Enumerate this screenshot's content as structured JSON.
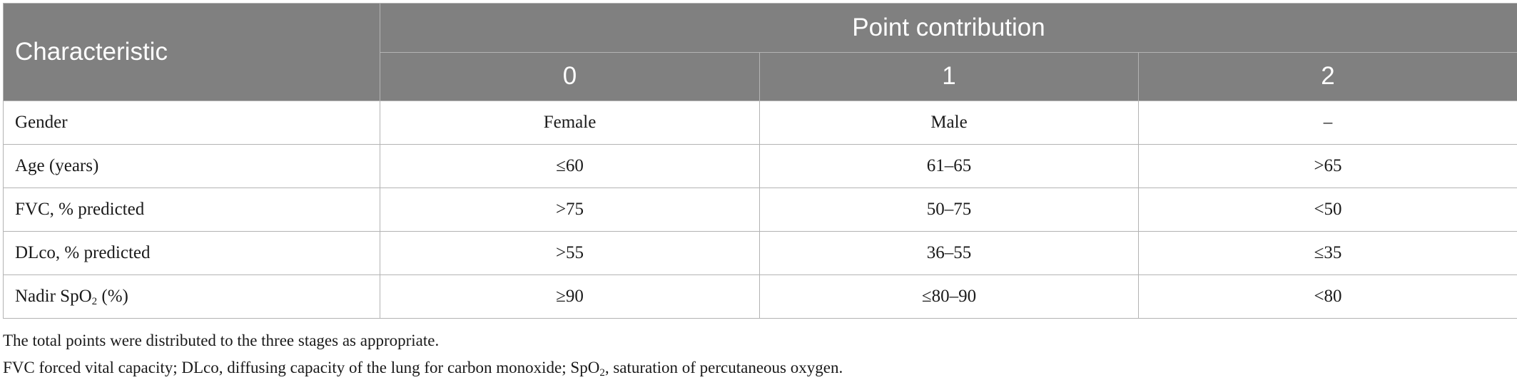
{
  "table": {
    "header": {
      "characteristic": "Characteristic",
      "group": "Point contribution",
      "points": [
        "0",
        "1",
        "2"
      ]
    },
    "rows": [
      {
        "label": "Gender",
        "values": [
          "Female",
          "Male",
          "–"
        ]
      },
      {
        "label": "Age (years)",
        "values": [
          "≤60",
          "61–65",
          ">65"
        ]
      },
      {
        "label": "FVC, % predicted",
        "values": [
          ">75",
          "50–75",
          "<50"
        ]
      },
      {
        "label": "DLco, % predicted",
        "values": [
          ">55",
          "36–55",
          "≤35"
        ]
      },
      {
        "label_pre": "Nadir SpO",
        "label_sub": "2",
        "label_post": " (%)",
        "values": [
          "≥90",
          "≤80–90",
          "<80"
        ]
      }
    ]
  },
  "footnotes": {
    "line1": "The total points were distributed to the three stages as appropriate.",
    "line2_pre": "FVC forced vital capacity; DLco, diffusing capacity of the lung for carbon monoxide; SpO",
    "line2_sub": "2",
    "line2_post": ", saturation of percutaneous oxygen."
  },
  "colors": {
    "header_bg": "#808080",
    "header_text": "#ffffff",
    "grid": "#b3b3b3"
  }
}
